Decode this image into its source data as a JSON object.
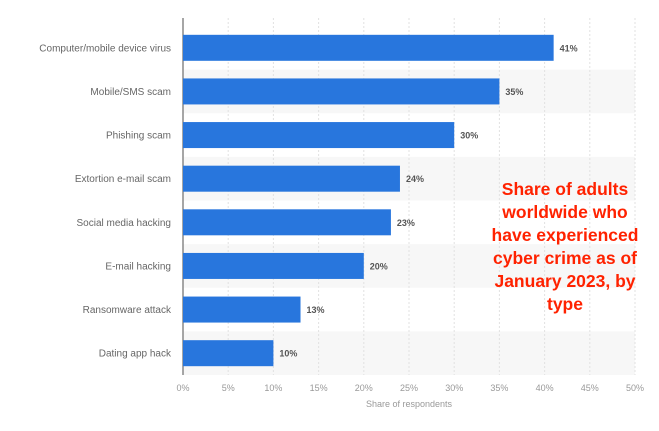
{
  "chart_data": {
    "type": "bar",
    "orientation": "horizontal",
    "title": "Share of adults worldwide who have experienced cyber crime as of January 2023, by type",
    "categories": [
      "Computer/mobile device virus",
      "Mobile/SMS scam",
      "Phishing scam",
      "Extortion e-mail scam",
      "Social media hacking",
      "E-mail hacking",
      "Ransomware attack",
      "Dating app hack"
    ],
    "values": [
      41,
      35,
      30,
      24,
      23,
      20,
      13,
      10
    ],
    "data_labels": [
      "41%",
      "35%",
      "30%",
      "24%",
      "23%",
      "20%",
      "13%",
      "10%"
    ],
    "xlabel": "Share of respondents",
    "ylabel": "",
    "xlim": [
      0,
      50
    ],
    "xticks": [
      "0%",
      "5%",
      "10%",
      "15%",
      "20%",
      "25%",
      "30%",
      "35%",
      "40%",
      "45%",
      "50%"
    ],
    "grid": true,
    "colors": {
      "bar": "#2876dd",
      "title": "#ff2200",
      "band": "#f7f7f7"
    }
  }
}
